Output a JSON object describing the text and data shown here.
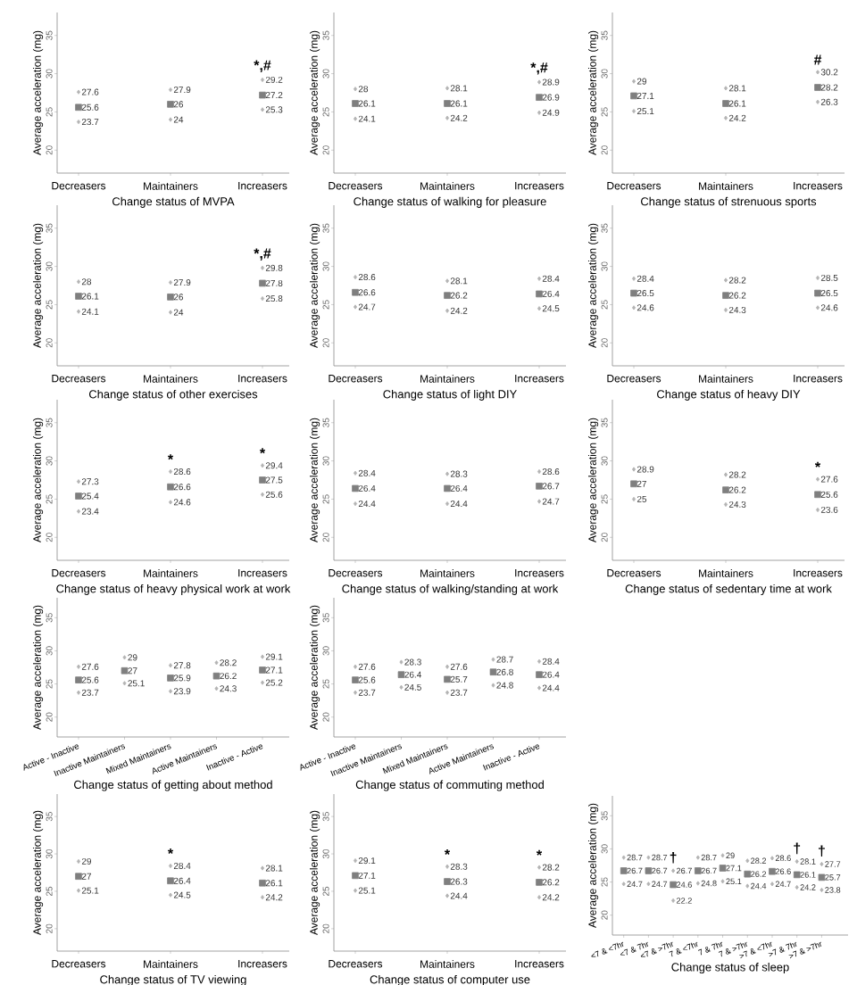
{
  "chart_data": [
    {
      "type": "scatter",
      "xlabel": "Change status of MVPA",
      "ylabel": "Average acceleration (mg)",
      "categories": [
        "Decreasers",
        "Maintainers",
        "Increasers"
      ],
      "ylim": [
        17,
        38
      ],
      "yticks": [
        20,
        25,
        30,
        35
      ],
      "data_labels": true,
      "annotations": [
        {
          "text": "*,#",
          "x": "Increasers",
          "y": 29.2
        }
      ],
      "series": [
        {
          "color": "#b3b3b3",
          "marker": "diamond",
          "values": [
            27.6,
            27.9,
            29.2
          ]
        },
        {
          "color": "#7f7f7f",
          "marker": "square",
          "values": [
            25.6,
            26,
            27.2
          ]
        },
        {
          "color": "#b3b3b3",
          "marker": "diamond",
          "values": [
            23.7,
            24,
            25.3
          ]
        }
      ]
    },
    {
      "type": "scatter",
      "xlabel": "Change status of walking for pleasure",
      "ylabel": "Average acceleration (mg)",
      "categories": [
        "Decreasers",
        "Maintainers",
        "Increasers"
      ],
      "ylim": [
        17,
        38
      ],
      "yticks": [
        20,
        25,
        30,
        35
      ],
      "data_labels": true,
      "annotations": [
        {
          "text": "*,#",
          "x": "Increasers",
          "y": 28.9
        }
      ],
      "series": [
        {
          "color": "#b3b3b3",
          "marker": "diamond",
          "values": [
            28,
            28.1,
            28.9
          ]
        },
        {
          "color": "#7f7f7f",
          "marker": "square",
          "values": [
            26.1,
            26.1,
            26.9
          ]
        },
        {
          "color": "#b3b3b3",
          "marker": "diamond",
          "values": [
            24.1,
            24.2,
            24.9
          ]
        }
      ]
    },
    {
      "type": "scatter",
      "xlabel": "Change status of strenuous sports",
      "ylabel": "Average acceleration (mg)",
      "categories": [
        "Decreasers",
        "Maintainers",
        "Increasers"
      ],
      "ylim": [
        17,
        38
      ],
      "yticks": [
        20,
        25,
        30,
        35
      ],
      "data_labels": true,
      "annotations": [
        {
          "text": "#",
          "x": "Increasers",
          "y": 30.2
        }
      ],
      "series": [
        {
          "color": "#b3b3b3",
          "marker": "diamond",
          "values": [
            29,
            28.1,
            30.2
          ]
        },
        {
          "color": "#7f7f7f",
          "marker": "square",
          "values": [
            27.1,
            26.1,
            28.2
          ]
        },
        {
          "color": "#b3b3b3",
          "marker": "diamond",
          "values": [
            25.1,
            24.2,
            26.3
          ]
        }
      ]
    },
    {
      "type": "scatter",
      "xlabel": "Change status of other exercises",
      "ylabel": "Average acceleration (mg)",
      "categories": [
        "Decreasers",
        "Maintainers",
        "Increasers"
      ],
      "ylim": [
        17,
        38
      ],
      "yticks": [
        20,
        25,
        30,
        35
      ],
      "data_labels": true,
      "annotations": [
        {
          "text": "*,#",
          "x": "Increasers",
          "y": 29.8
        }
      ],
      "series": [
        {
          "color": "#b3b3b3",
          "marker": "diamond",
          "values": [
            28,
            27.9,
            29.8
          ]
        },
        {
          "color": "#7f7f7f",
          "marker": "square",
          "values": [
            26.1,
            26,
            27.8
          ]
        },
        {
          "color": "#b3b3b3",
          "marker": "diamond",
          "values": [
            24.1,
            24,
            25.8
          ]
        }
      ]
    },
    {
      "type": "scatter",
      "xlabel": "Change status of light DIY",
      "ylabel": "Average acceleration (mg)",
      "categories": [
        "Decreasers",
        "Maintainers",
        "Increasers"
      ],
      "ylim": [
        17,
        38
      ],
      "yticks": [
        20,
        25,
        30,
        35
      ],
      "data_labels": true,
      "series": [
        {
          "color": "#b3b3b3",
          "marker": "diamond",
          "values": [
            28.6,
            28.1,
            28.4
          ]
        },
        {
          "color": "#7f7f7f",
          "marker": "square",
          "values": [
            26.6,
            26.2,
            26.4
          ]
        },
        {
          "color": "#b3b3b3",
          "marker": "diamond",
          "values": [
            24.7,
            24.2,
            24.5
          ]
        }
      ]
    },
    {
      "type": "scatter",
      "xlabel": "Change status of heavy DIY",
      "ylabel": "Average acceleration (mg)",
      "categories": [
        "Decreasers",
        "Maintainers",
        "Increasers"
      ],
      "ylim": [
        17,
        38
      ],
      "yticks": [
        20,
        25,
        30,
        35
      ],
      "data_labels": true,
      "series": [
        {
          "color": "#b3b3b3",
          "marker": "diamond",
          "values": [
            28.4,
            28.2,
            28.5
          ]
        },
        {
          "color": "#7f7f7f",
          "marker": "square",
          "values": [
            26.5,
            26.2,
            26.5
          ]
        },
        {
          "color": "#b3b3b3",
          "marker": "diamond",
          "values": [
            24.6,
            24.3,
            24.6
          ]
        }
      ]
    },
    {
      "type": "scatter",
      "xlabel": "Change status of heavy physical work at work",
      "ylabel": "Average acceleration (mg)",
      "categories": [
        "Decreasers",
        "Maintainers",
        "Increasers"
      ],
      "ylim": [
        17,
        38
      ],
      "yticks": [
        20,
        25,
        30,
        35
      ],
      "data_labels": true,
      "annotations": [
        {
          "text": "*",
          "x": "Maintainers",
          "y": 28.6
        },
        {
          "text": "*",
          "x": "Increasers",
          "y": 29.4
        }
      ],
      "series": [
        {
          "color": "#b3b3b3",
          "marker": "diamond",
          "values": [
            27.3,
            28.6,
            29.4
          ]
        },
        {
          "color": "#7f7f7f",
          "marker": "square",
          "values": [
            25.4,
            26.6,
            27.5
          ]
        },
        {
          "color": "#b3b3b3",
          "marker": "diamond",
          "values": [
            23.4,
            24.6,
            25.6
          ]
        }
      ]
    },
    {
      "type": "scatter",
      "xlabel": "Change status of walking/standing at work",
      "ylabel": "Average acceleration (mg)",
      "categories": [
        "Decreasers",
        "Maintainers",
        "Increasers"
      ],
      "ylim": [
        17,
        38
      ],
      "yticks": [
        20,
        25,
        30,
        35
      ],
      "data_labels": true,
      "series": [
        {
          "color": "#b3b3b3",
          "marker": "diamond",
          "values": [
            28.4,
            28.3,
            28.6
          ]
        },
        {
          "color": "#7f7f7f",
          "marker": "square",
          "values": [
            26.4,
            26.4,
            26.7
          ]
        },
        {
          "color": "#b3b3b3",
          "marker": "diamond",
          "values": [
            24.4,
            24.4,
            24.7
          ]
        }
      ]
    },
    {
      "type": "scatter",
      "xlabel": "Change status of sedentary time at work",
      "ylabel": "Average acceleration (mg)",
      "categories": [
        "Decreasers",
        "Maintainers",
        "Increasers"
      ],
      "ylim": [
        17,
        38
      ],
      "yticks": [
        20,
        25,
        30,
        35
      ],
      "data_labels": true,
      "annotations": [
        {
          "text": "*",
          "x": "Increasers",
          "y": 27.6
        }
      ],
      "series": [
        {
          "color": "#b3b3b3",
          "marker": "diamond",
          "values": [
            28.9,
            28.2,
            27.6
          ]
        },
        {
          "color": "#7f7f7f",
          "marker": "square",
          "values": [
            27,
            26.2,
            25.6
          ]
        },
        {
          "color": "#b3b3b3",
          "marker": "diamond",
          "values": [
            25,
            24.3,
            23.6
          ]
        }
      ]
    },
    {
      "type": "scatter",
      "xlabel": "Change status of getting about method",
      "ylabel": "Average acceleration (mg)",
      "categories": [
        "Active - Inactive",
        "Inactive Maintainers",
        "Mixed Maintainers",
        "Active Maintainers",
        "Inactive - Active"
      ],
      "ylim": [
        17,
        38
      ],
      "yticks": [
        20,
        25,
        30,
        35
      ],
      "data_labels": true,
      "series": [
        {
          "color": "#b3b3b3",
          "marker": "diamond",
          "values": [
            27.6,
            29,
            27.8,
            28.2,
            29.1
          ]
        },
        {
          "color": "#7f7f7f",
          "marker": "square",
          "values": [
            25.6,
            27,
            25.9,
            26.2,
            27.1
          ]
        },
        {
          "color": "#b3b3b3",
          "marker": "diamond",
          "values": [
            23.7,
            25.1,
            23.9,
            24.3,
            25.2
          ]
        }
      ]
    },
    {
      "type": "scatter",
      "xlabel": "Change status of commuting method",
      "ylabel": "Average acceleration (mg)",
      "categories": [
        "Active - Inactive",
        "Inactive Maintainers",
        "Mixed Maintainers",
        "Active Maintainers",
        "Inactive - Active"
      ],
      "ylim": [
        17,
        38
      ],
      "yticks": [
        20,
        25,
        30,
        35
      ],
      "data_labels": true,
      "series": [
        {
          "color": "#b3b3b3",
          "marker": "diamond",
          "values": [
            27.6,
            28.3,
            27.6,
            28.7,
            28.4
          ]
        },
        {
          "color": "#7f7f7f",
          "marker": "square",
          "values": [
            25.6,
            26.4,
            25.7,
            26.8,
            26.4
          ]
        },
        {
          "color": "#b3b3b3",
          "marker": "diamond",
          "values": [
            23.7,
            24.5,
            23.7,
            24.8,
            24.4
          ]
        }
      ]
    },
    {
      "type": "scatter",
      "xlabel": "Change status of TV viewing",
      "ylabel": "Average acceleration (mg)",
      "categories": [
        "Decreasers",
        "Maintainers",
        "Increasers"
      ],
      "ylim": [
        17,
        38
      ],
      "yticks": [
        20,
        25,
        30,
        35
      ],
      "data_labels": true,
      "annotations": [
        {
          "text": "*",
          "x": "Maintainers",
          "y": 28.4
        }
      ],
      "series": [
        {
          "color": "#b3b3b3",
          "marker": "diamond",
          "values": [
            29,
            28.4,
            28.1
          ]
        },
        {
          "color": "#7f7f7f",
          "marker": "square",
          "values": [
            27,
            26.4,
            26.1
          ]
        },
        {
          "color": "#b3b3b3",
          "marker": "diamond",
          "values": [
            25.1,
            24.5,
            24.2
          ]
        }
      ]
    },
    {
      "type": "scatter",
      "xlabel": "Change status of computer use",
      "ylabel": "Average acceleration (mg)",
      "categories": [
        "Decreasers",
        "Maintainers",
        "Increasers"
      ],
      "ylim": [
        17,
        38
      ],
      "yticks": [
        20,
        25,
        30,
        35
      ],
      "data_labels": true,
      "annotations": [
        {
          "text": "*",
          "x": "Maintainers",
          "y": 28.3
        },
        {
          "text": "*",
          "x": "Increasers",
          "y": 28.2
        }
      ],
      "series": [
        {
          "color": "#b3b3b3",
          "marker": "diamond",
          "values": [
            29.1,
            28.3,
            28.2
          ]
        },
        {
          "color": "#7f7f7f",
          "marker": "square",
          "values": [
            27.1,
            26.3,
            26.2
          ]
        },
        {
          "color": "#b3b3b3",
          "marker": "diamond",
          "values": [
            25.1,
            24.4,
            24.2
          ]
        }
      ]
    },
    {
      "type": "scatter",
      "xlabel": "Change status of sleep",
      "ylabel": "Average acceleration (mg)",
      "categories": [
        "<7 & <7hr",
        "<7 & 7hr",
        "<7 & >7hr",
        "7 & <7hr",
        "7 & 7hr",
        "7 & >7hr",
        ">7 & <7hr",
        ">7 & 7hr",
        ">7 & >7hr"
      ],
      "ylim": [
        17,
        38
      ],
      "yticks": [
        20,
        25,
        30,
        35
      ],
      "data_labels": true,
      "annotations": [
        {
          "text": "†",
          "x": "<7 & >7hr",
          "y": 26.7
        },
        {
          "text": "†",
          "x": ">7 & 7hr",
          "y": 28.1
        },
        {
          "text": "†",
          "x": ">7 & >7hr",
          "y": 27.7
        }
      ],
      "series": [
        {
          "color": "#b3b3b3",
          "marker": "diamond",
          "values": [
            28.7,
            28.7,
            26.7,
            28.7,
            29,
            28.2,
            28.6,
            28.1,
            27.7
          ]
        },
        {
          "color": "#7f7f7f",
          "marker": "square",
          "values": [
            26.7,
            26.7,
            24.6,
            26.7,
            27.1,
            26.2,
            26.6,
            26.1,
            25.7
          ]
        },
        {
          "color": "#b3b3b3",
          "marker": "diamond",
          "values": [
            24.7,
            24.7,
            22.2,
            24.8,
            25.1,
            24.4,
            24.7,
            24.2,
            23.8
          ]
        }
      ]
    }
  ]
}
